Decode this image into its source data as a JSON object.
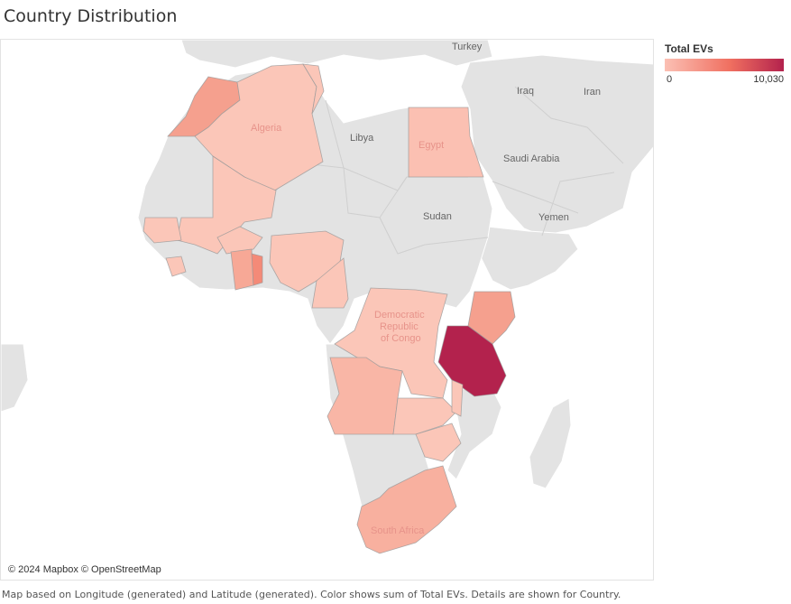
{
  "title": "Country Distribution",
  "legend": {
    "title": "Total EVs",
    "min_label": "0",
    "max_label": "10,030",
    "colors": {
      "low": "#fbc0b4",
      "mid": "#f06f60",
      "high": "#b3224d"
    }
  },
  "attribution": "© 2024 Mapbox © OpenStreetMap",
  "caption": "Map based on Longitude (generated) and Latitude (generated).  Color shows sum of Total EVs.  Details are shown for Country.",
  "base_labels": {
    "turkey": "Turkey",
    "iraq": "Iraq",
    "iran": "Iran",
    "libya": "Libya",
    "saudi": "Saudi Arabia",
    "sudan": "Sudan",
    "yemen": "Yemen"
  },
  "country_labels": {
    "algeria": "Algeria",
    "egypt": "Egypt",
    "drc_1": "Democratic",
    "drc_2": "Republic",
    "drc_3": "of Congo",
    "south_africa": "South Africa"
  },
  "highlighted_countries": [
    {
      "name": "Morocco",
      "fill": "#f5a08e"
    },
    {
      "name": "Algeria",
      "fill": "#fbc6b8"
    },
    {
      "name": "Tunisia",
      "fill": "#fbc6b8"
    },
    {
      "name": "Egypt",
      "fill": "#fbc0b2"
    },
    {
      "name": "Mali",
      "fill": "#fbc6b8"
    },
    {
      "name": "Senegal",
      "fill": "#fbc6b8"
    },
    {
      "name": "Guinea",
      "fill": "#fbc6b8"
    },
    {
      "name": "Burkina Faso",
      "fill": "#fbc6b8"
    },
    {
      "name": "Ghana",
      "fill": "#f7a896"
    },
    {
      "name": "Togo",
      "fill": "#f48a78"
    },
    {
      "name": "Liberia",
      "fill": "#fbc6b8"
    },
    {
      "name": "Nigeria",
      "fill": "#fbc6b8"
    },
    {
      "name": "Cameroon",
      "fill": "#fbc6b8"
    },
    {
      "name": "Democratic Republic of Congo",
      "fill": "#fbc6b8"
    },
    {
      "name": "Kenya",
      "fill": "#f5a08e"
    },
    {
      "name": "Tanzania",
      "fill": "#b3224d"
    },
    {
      "name": "Angola",
      "fill": "#f9b6a6"
    },
    {
      "name": "Zambia",
      "fill": "#fbc6b8"
    },
    {
      "name": "Malawi",
      "fill": "#fbc6b8"
    },
    {
      "name": "Zimbabwe",
      "fill": "#fbc6b8"
    },
    {
      "name": "South Africa",
      "fill": "#f8b09f"
    }
  ]
}
